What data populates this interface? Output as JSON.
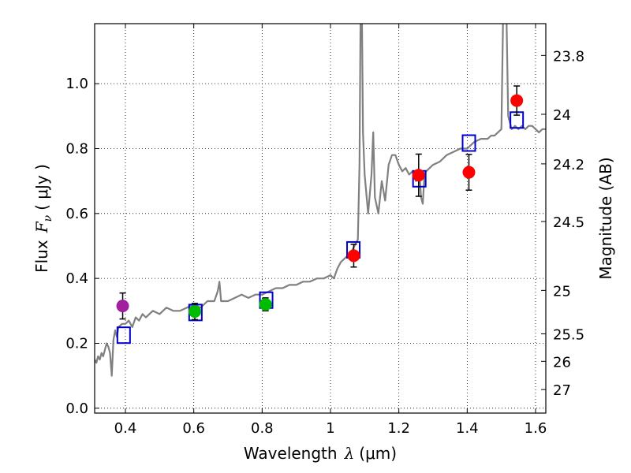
{
  "chart_data": {
    "type": "scatter",
    "xlabel": "Wavelength",
    "xlabel_symbol": "λ",
    "xlabel_unit": "(μm)",
    "ylabel": "Flux",
    "ylabel_symbol": "F",
    "ylabel_subscript": "ν",
    "ylabel_unit": "( μJy )",
    "ylabel_right": "Magnitude (AB)",
    "xlim": [
      0.31,
      1.63
    ],
    "ylim": [
      -0.015,
      1.185
    ],
    "grid": true,
    "x_ticks": [
      0.4,
      0.6,
      0.8,
      1.0,
      1.2,
      1.4,
      1.6
    ],
    "x_tick_labels": [
      "0.4",
      "0.6",
      "0.8",
      "1",
      "1.2",
      "1.4",
      "1.6"
    ],
    "y_ticks": [
      0.0,
      0.2,
      0.4,
      0.6,
      0.8,
      1.0
    ],
    "y_tick_labels": [
      "0.0",
      "0.2",
      "0.4",
      "0.6",
      "0.8",
      "1.0"
    ],
    "magnitude_ticks": [
      {
        "label": "23.8",
        "flux": 1.087
      },
      {
        "label": "24",
        "flux": 0.9057
      },
      {
        "label": "24.2",
        "flux": 0.7529
      },
      {
        "label": "24.5",
        "flux": 0.5754
      },
      {
        "label": "25",
        "flux": 0.3631
      },
      {
        "label": "25.5",
        "flux": 0.2291
      },
      {
        "label": "26",
        "flux": 0.1445
      },
      {
        "label": "27",
        "flux": 0.0575
      }
    ],
    "colors": {
      "spectrum": "#808080",
      "model_box": "#0000cc",
      "purple": "#a020a0",
      "green": "#00bb00",
      "red": "#ff0000",
      "errorbar": "#000000",
      "grid": "#000000"
    },
    "series": [
      {
        "name": "model spectrum",
        "kind": "line",
        "x": [
          0.31,
          0.315,
          0.32,
          0.325,
          0.33,
          0.335,
          0.34,
          0.345,
          0.35,
          0.355,
          0.36,
          0.365,
          0.37,
          0.375,
          0.38,
          0.39,
          0.4,
          0.41,
          0.42,
          0.43,
          0.44,
          0.45,
          0.46,
          0.48,
          0.5,
          0.52,
          0.54,
          0.56,
          0.58,
          0.6,
          0.62,
          0.64,
          0.66,
          0.67,
          0.675,
          0.68,
          0.7,
          0.72,
          0.74,
          0.76,
          0.78,
          0.8,
          0.82,
          0.84,
          0.86,
          0.88,
          0.9,
          0.92,
          0.94,
          0.96,
          0.98,
          1.0,
          1.01,
          1.02,
          1.03,
          1.04,
          1.06,
          1.08,
          1.085,
          1.088,
          1.09,
          1.092,
          1.095,
          1.1,
          1.11,
          1.12,
          1.125,
          1.13,
          1.14,
          1.15,
          1.16,
          1.17,
          1.18,
          1.19,
          1.2,
          1.21,
          1.22,
          1.23,
          1.24,
          1.25,
          1.26,
          1.265,
          1.27,
          1.275,
          1.28,
          1.3,
          1.32,
          1.34,
          1.36,
          1.38,
          1.4,
          1.42,
          1.44,
          1.46,
          1.47,
          1.48,
          1.49,
          1.5,
          1.505,
          1.51,
          1.515,
          1.52,
          1.53,
          1.54,
          1.55,
          1.56,
          1.57,
          1.58,
          1.59,
          1.6,
          1.61,
          1.62,
          1.63
        ],
        "y": [
          0.15,
          0.14,
          0.16,
          0.15,
          0.17,
          0.16,
          0.18,
          0.2,
          0.19,
          0.17,
          0.1,
          0.21,
          0.24,
          0.22,
          0.25,
          0.26,
          0.26,
          0.27,
          0.25,
          0.28,
          0.27,
          0.29,
          0.28,
          0.3,
          0.29,
          0.31,
          0.3,
          0.3,
          0.31,
          0.32,
          0.31,
          0.33,
          0.33,
          0.36,
          0.39,
          0.33,
          0.33,
          0.34,
          0.35,
          0.34,
          0.35,
          0.35,
          0.36,
          0.37,
          0.37,
          0.38,
          0.38,
          0.39,
          0.39,
          0.4,
          0.4,
          0.41,
          0.4,
          0.43,
          0.45,
          0.46,
          0.48,
          0.52,
          0.75,
          1.2,
          1.2,
          1.2,
          0.85,
          0.72,
          0.6,
          0.72,
          0.85,
          0.65,
          0.6,
          0.7,
          0.64,
          0.75,
          0.78,
          0.78,
          0.75,
          0.73,
          0.74,
          0.72,
          0.73,
          0.7,
          0.73,
          0.65,
          0.63,
          0.72,
          0.73,
          0.75,
          0.76,
          0.78,
          0.79,
          0.8,
          0.8,
          0.82,
          0.83,
          0.83,
          0.84,
          0.84,
          0.85,
          0.86,
          1.2,
          1.2,
          1.2,
          0.9,
          0.86,
          0.87,
          0.86,
          0.87,
          0.86,
          0.87,
          0.87,
          0.86,
          0.85,
          0.86,
          0.86
        ]
      },
      {
        "name": "model photometry",
        "kind": "box",
        "points": [
          {
            "x": 0.395,
            "y": 0.225
          },
          {
            "x": 0.605,
            "y": 0.295
          },
          {
            "x": 0.812,
            "y": 0.333
          },
          {
            "x": 1.067,
            "y": 0.488
          },
          {
            "x": 1.26,
            "y": 0.707
          },
          {
            "x": 1.405,
            "y": 0.817
          },
          {
            "x": 1.545,
            "y": 0.888
          }
        ]
      },
      {
        "name": "observed photometry",
        "kind": "errorbar",
        "points": [
          {
            "x": 0.392,
            "y": 0.315,
            "err": 0.04,
            "color": "purple"
          },
          {
            "x": 0.603,
            "y": 0.298,
            "err": 0.025,
            "color": "green"
          },
          {
            "x": 0.81,
            "y": 0.32,
            "err": 0.02,
            "color": "green"
          },
          {
            "x": 1.068,
            "y": 0.47,
            "err": 0.035,
            "color": "red"
          },
          {
            "x": 1.258,
            "y": 0.718,
            "err": 0.065,
            "color": "red"
          },
          {
            "x": 1.405,
            "y": 0.727,
            "err": 0.055,
            "color": "red"
          },
          {
            "x": 1.545,
            "y": 0.948,
            "err": 0.045,
            "color": "red"
          }
        ]
      }
    ]
  }
}
